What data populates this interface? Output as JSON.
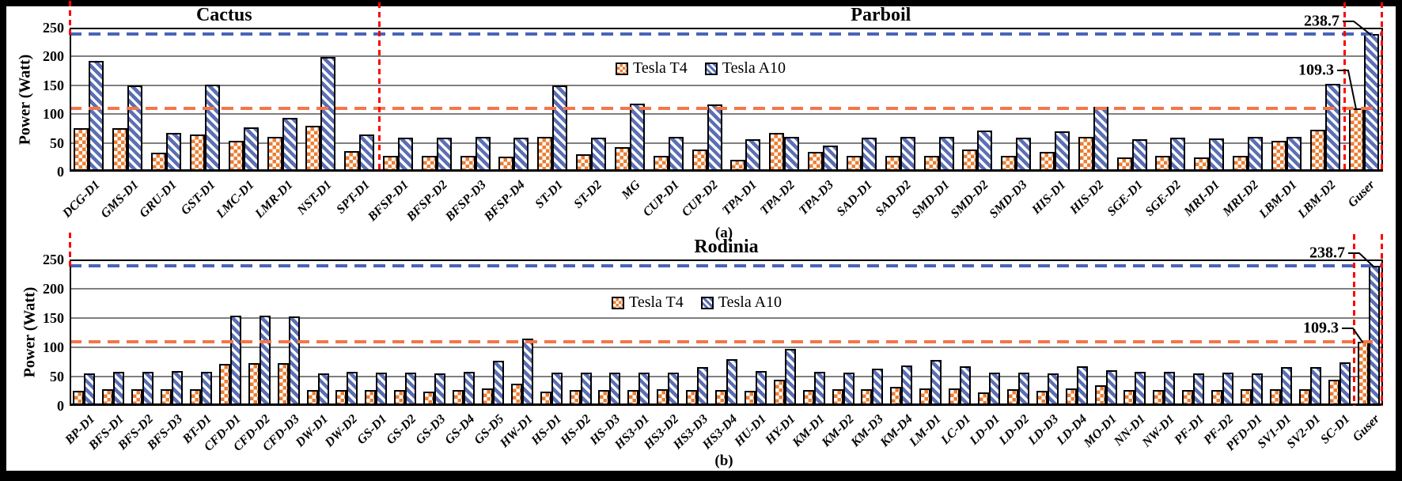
{
  "figure": {
    "ylabel": "Power (Watt)",
    "legend": [
      {
        "label": "Tesla T4",
        "series": "t4"
      },
      {
        "label": "Tesla A10",
        "series": "a10"
      }
    ],
    "colors": {
      "t4_orange": "#ED7D31",
      "a10_blue": "#5B6FB4",
      "threshold_blue": "#4A64B8",
      "threshold_orange": "#F4764A",
      "divider_red": "#FF0000",
      "gridline_gray": "#7F7F7F"
    }
  },
  "chart_data": [
    {
      "type": "bar",
      "subplot_label": "(a)",
      "ylabel": "Power (Watt)",
      "ylim": [
        0,
        250
      ],
      "yticks": [
        0,
        50,
        100,
        150,
        200,
        250
      ],
      "legend_position": "top-center",
      "grid": true,
      "section_titles": [
        {
          "label": "Cactus",
          "from": 0,
          "to": 8
        },
        {
          "label": "Parboil",
          "from": 8,
          "to": 34
        }
      ],
      "categories": [
        "DCG-D1",
        "GMS-D1",
        "GRU-D1",
        "GST-D1",
        "LMC-D1",
        "LMR-D1",
        "NST-D1",
        "SPT-D1",
        "BFSP-D1",
        "BFSP-D2",
        "BFSP-D3",
        "BFSP-D4",
        "ST-D1",
        "ST-D2",
        "MG",
        "CUP-D1",
        "CUP-D2",
        "TPA-D1",
        "TPA-D2",
        "TPA-D3",
        "SAD-D1",
        "SAD-D2",
        "SMD-D1",
        "SMD-D2",
        "SMD-D3",
        "HIS-D1",
        "HIS-D2",
        "SGE-D1",
        "SGE-D2",
        "MRI-D1",
        "MRI-D2",
        "LBM-D1",
        "LBM-D2",
        "Guser"
      ],
      "series": [
        {
          "name": "Tesla T4",
          "values": [
            76,
            75,
            33,
            64,
            53,
            61,
            80,
            36,
            27,
            27,
            28,
            26,
            61,
            30,
            42,
            28,
            38,
            21,
            67,
            35,
            28,
            27,
            28,
            38,
            28,
            35,
            61,
            25,
            27,
            25,
            28,
            54,
            73,
            109.3
          ]
        },
        {
          "name": "Tesla A10",
          "values": [
            193,
            150,
            67,
            151,
            77,
            93,
            199,
            65,
            59,
            59,
            61,
            59,
            150,
            59,
            118,
            60,
            117,
            56,
            61,
            45,
            59,
            61,
            61,
            72,
            59,
            70,
            112,
            57,
            59,
            58,
            61,
            60,
            152,
            238.7
          ]
        }
      ],
      "hlines": [
        {
          "value": 238.7,
          "color": "blue"
        },
        {
          "value": 109.3,
          "color": "orange"
        }
      ],
      "dividers": [
        {
          "at": 0,
          "style": "stub"
        },
        {
          "at": 8,
          "style": "full"
        },
        {
          "at": 33,
          "style": "full"
        },
        {
          "at": 34,
          "style": "full"
        }
      ],
      "annotations": [
        {
          "text": "238.7",
          "series": 1,
          "category": "Guser"
        },
        {
          "text": "109.3",
          "series": 0,
          "category": "Guser"
        }
      ]
    },
    {
      "type": "bar",
      "subplot_label": "(b)",
      "ylabel": "Power (Watt)",
      "ylim": [
        0,
        250
      ],
      "yticks": [
        0,
        50,
        100,
        150,
        200,
        250
      ],
      "legend_position": "top-center",
      "grid": true,
      "section_titles": [
        {
          "label": "Rodinia",
          "from": 0,
          "to": 45
        }
      ],
      "categories": [
        "BP-D1",
        "BFS-D1",
        "BFS-D2",
        "BFS-D3",
        "BT-D1",
        "CFD-D1",
        "CFD-D2",
        "CFD-D3",
        "DW-D1",
        "DW-D2",
        "GS-D1",
        "GS-D2",
        "GS-D3",
        "GS-D4",
        "GS-D5",
        "HW-D1",
        "HS-D1",
        "HS-D2",
        "HS-D3",
        "HS3-D1",
        "HS3-D2",
        "HS3-D3",
        "HS3-D4",
        "HU-D1",
        "HY-D1",
        "KM-D1",
        "KM-D2",
        "KM-D3",
        "KM-D4",
        "LM-D1",
        "LC-D1",
        "LD-D1",
        "LD-D2",
        "LD-D3",
        "LD-D4",
        "MO-D1",
        "NN-D1",
        "NW-D1",
        "PF-D1",
        "PF-D2",
        "PFD-D1",
        "SV1-D1",
        "SV2-D1",
        "SC-D1",
        "Guser"
      ],
      "series": [
        {
          "name": "Tesla T4",
          "values": [
            26,
            28,
            28,
            28,
            28,
            72,
            73,
            73,
            27,
            27,
            27,
            27,
            24,
            27,
            30,
            38,
            24,
            27,
            27,
            27,
            29,
            27,
            27,
            26,
            44,
            27,
            29,
            29,
            32,
            30,
            30,
            23,
            28,
            26,
            30,
            35,
            27,
            27,
            27,
            27,
            28,
            29,
            28,
            45,
            109.3
          ]
        },
        {
          "name": "Tesla A10",
          "values": [
            56,
            58,
            58,
            60,
            58,
            154,
            154,
            153,
            56,
            58,
            57,
            57,
            56,
            58,
            77,
            115,
            57,
            57,
            57,
            57,
            57,
            66,
            80,
            59,
            97,
            58,
            57,
            63,
            69,
            79,
            68,
            57,
            57,
            56,
            67,
            61,
            58,
            58,
            56,
            57,
            56,
            66,
            66,
            75,
            238.7
          ]
        }
      ],
      "hlines": [
        {
          "value": 238.7,
          "color": "blue"
        },
        {
          "value": 109.3,
          "color": "orange"
        }
      ],
      "dividers": [
        {
          "at": 0,
          "style": "stub"
        },
        {
          "at": 44,
          "style": "full"
        },
        {
          "at": 45,
          "style": "full"
        }
      ],
      "annotations": [
        {
          "text": "238.7",
          "series": 1,
          "category": "Guser"
        },
        {
          "text": "109.3",
          "series": 0,
          "category": "Guser"
        }
      ]
    }
  ]
}
